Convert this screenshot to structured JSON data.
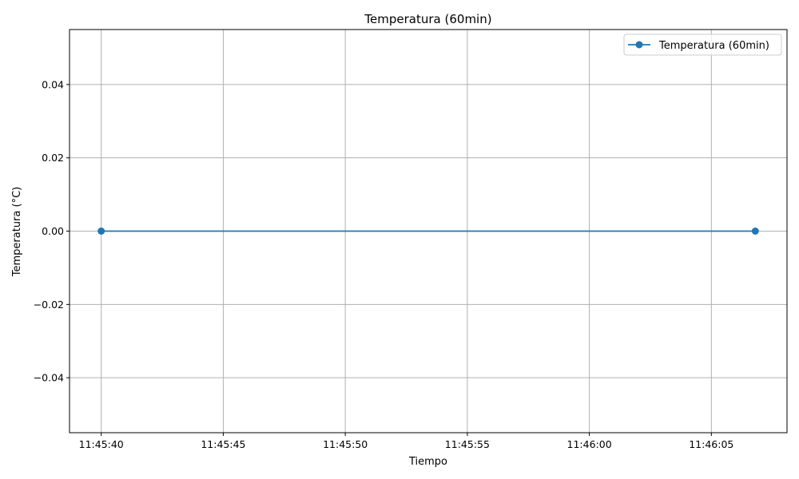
{
  "chart_data": {
    "type": "line",
    "title": "Temperatura (60min)",
    "xlabel": "Tiempo",
    "ylabel": "Temperatura (°C)",
    "x_ticks": [
      "11:45:40",
      "11:45:45",
      "11:45:50",
      "11:45:55",
      "11:46:00",
      "11:46:05"
    ],
    "x_tick_seconds": [
      0,
      5,
      10,
      15,
      20,
      25
    ],
    "xlim_seconds": [
      -1.3,
      28.1
    ],
    "ylim": [
      -0.055,
      0.055
    ],
    "y_ticks": [
      -0.04,
      -0.02,
      0.0,
      0.02,
      0.04
    ],
    "y_tick_labels": [
      "−0.04",
      "−0.02",
      "0.00",
      "0.02",
      "0.04"
    ],
    "series": [
      {
        "name": "Temperatura (60min)",
        "color": "#1f77b4",
        "marker": "circle",
        "points": [
          {
            "x": "11:45:40",
            "y": 0.0
          },
          {
            "x": "11:46:06.8",
            "y": 0.0
          }
        ]
      }
    ],
    "grid": true,
    "legend_position": "top-right"
  }
}
